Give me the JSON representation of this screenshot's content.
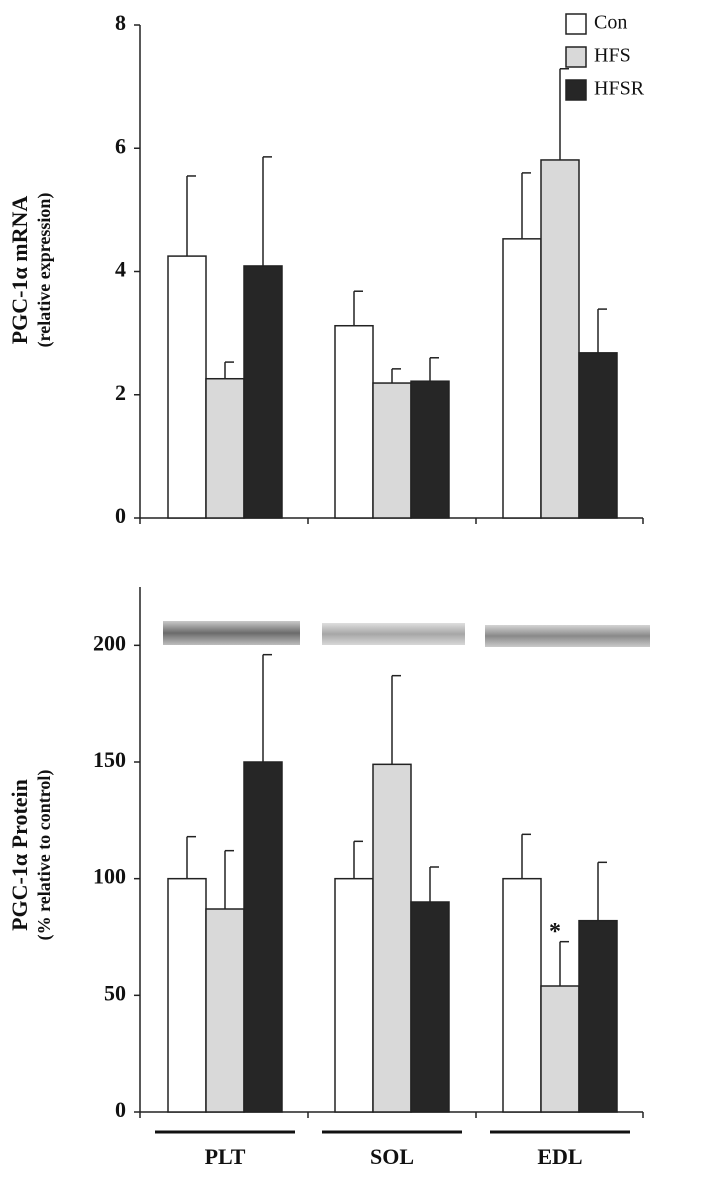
{
  "chart_data": [
    {
      "type": "bar",
      "ylabel": [
        "PGC-1α mRNA",
        "(relative expression)"
      ],
      "categories": [
        null,
        null,
        null
      ],
      "series": [
        {
          "name": "Con",
          "color": "#ffffff",
          "values": [
            4.25,
            3.12,
            4.53
          ],
          "errors": [
            1.3,
            0.56,
            1.07
          ]
        },
        {
          "name": "HFS",
          "color": "#d9d9d9",
          "values": [
            2.26,
            2.19,
            5.81
          ],
          "errors": [
            0.27,
            0.23,
            1.48
          ]
        },
        {
          "name": "HFSR",
          "color": "#262626",
          "values": [
            4.09,
            2.22,
            2.68
          ],
          "errors": [
            1.77,
            0.38,
            0.71
          ]
        }
      ],
      "ylim": [
        0,
        8
      ],
      "yticks": [
        0,
        2,
        4,
        6,
        8
      ],
      "legend": "top-right"
    },
    {
      "type": "bar",
      "ylabel": [
        "PGC-1α Protein",
        "(% relative to control)"
      ],
      "categories": [
        "PLT",
        "SOL",
        "EDL"
      ],
      "series": [
        {
          "color": "#ffffff",
          "values": [
            100,
            100,
            100
          ],
          "errors": [
            18,
            16,
            19
          ]
        },
        {
          "color": "#d9d9d9",
          "values": [
            87,
            149,
            54
          ],
          "errors": [
            25,
            38,
            19
          ]
        },
        {
          "color": "#262626",
          "values": [
            150,
            90,
            82
          ],
          "errors": [
            46,
            15,
            25
          ]
        }
      ],
      "annotations": [
        {
          "text": "*",
          "category": 2,
          "series": 1
        }
      ],
      "ylim": [
        0,
        225
      ],
      "yticks": [
        0,
        50,
        100,
        150,
        200
      ]
    }
  ]
}
